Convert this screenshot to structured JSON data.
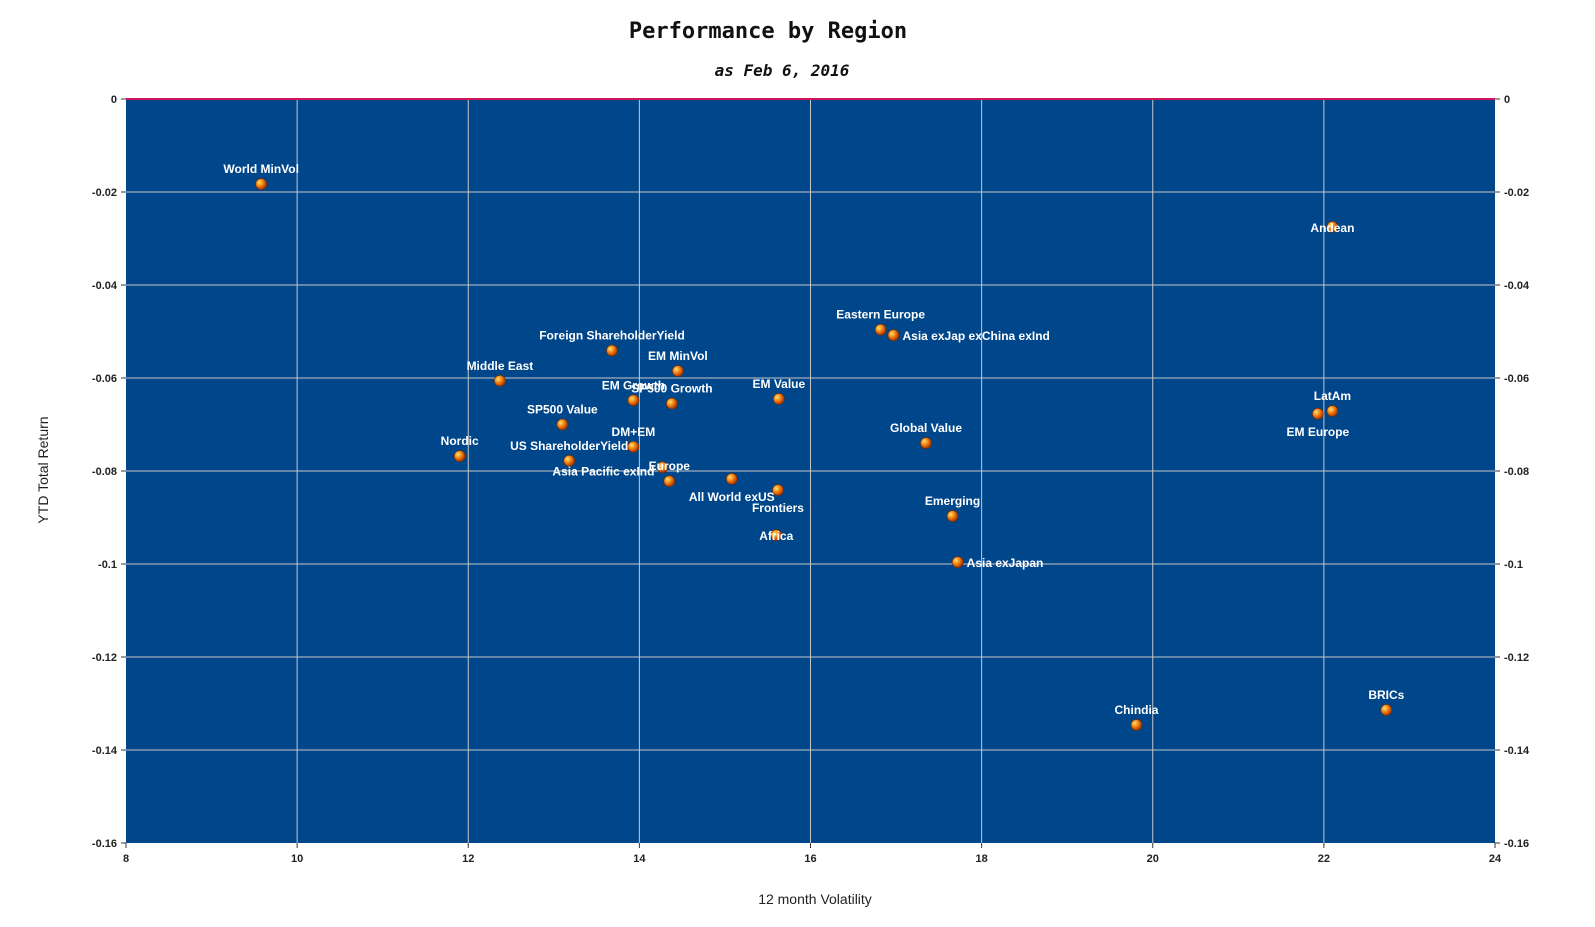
{
  "chart_data": {
    "type": "scatter",
    "title": "Performance by Region",
    "subtitle": "as Feb 6, 2016",
    "xlabel": "12 month Volatility",
    "ylabel": "YTD Total Return",
    "xlim": [
      8,
      24
    ],
    "ylim": [
      -0.16,
      0
    ],
    "xticks": [
      "8",
      "10",
      "12",
      "14",
      "16",
      "18",
      "20",
      "22",
      "24"
    ],
    "yticks": [
      "0",
      "-0.02",
      "-0.04",
      "-0.06",
      "-0.08",
      "-0.1",
      "-0.12",
      "-0.14",
      "-0.16"
    ],
    "grid": true,
    "points": [
      {
        "label": "World MinVol",
        "x": 9.58,
        "y": -0.0183,
        "pos": "above"
      },
      {
        "label": "Andean",
        "x": 22.1,
        "y": -0.0275,
        "pos": "on"
      },
      {
        "label": "Eastern Europe",
        "x": 16.82,
        "y": -0.0496,
        "pos": "above"
      },
      {
        "label": "Asia exJap exChina exInd",
        "x": 16.97,
        "y": -0.0508,
        "pos": "right"
      },
      {
        "label": "Foreign ShareholderYield",
        "x": 13.68,
        "y": -0.0541,
        "pos": "above"
      },
      {
        "label": "EM MinVol",
        "x": 14.45,
        "y": -0.0585,
        "pos": "above"
      },
      {
        "label": "Middle East",
        "x": 12.37,
        "y": -0.0606,
        "pos": "above"
      },
      {
        "label": "EM Growth",
        "x": 13.93,
        "y": -0.0648,
        "pos": "above"
      },
      {
        "label": "EM Value",
        "x": 15.63,
        "y": -0.0645,
        "pos": "above"
      },
      {
        "label": "SP500 Growth",
        "x": 14.38,
        "y": -0.0655,
        "pos": "above"
      },
      {
        "label": "LatAm",
        "x": 22.1,
        "y": -0.0671,
        "pos": "above"
      },
      {
        "label": "EM Europe",
        "x": 21.93,
        "y": -0.0677,
        "pos": "below"
      },
      {
        "label": "SP500 Value",
        "x": 13.1,
        "y": -0.07,
        "pos": "above"
      },
      {
        "label": "Global Value",
        "x": 17.35,
        "y": -0.074,
        "pos": "above"
      },
      {
        "label": "DM+EM",
        "x": 13.93,
        "y": -0.0748,
        "pos": "above"
      },
      {
        "label": "Nordic",
        "x": 11.9,
        "y": -0.0768,
        "pos": "above"
      },
      {
        "label": "US ShareholderYield",
        "x": 13.18,
        "y": -0.0778,
        "pos": "above"
      },
      {
        "label": "Asia Pacific exInd",
        "x": 14.27,
        "y": -0.0792,
        "pos": "left"
      },
      {
        "label": "Europe",
        "x": 14.35,
        "y": -0.0822,
        "pos": "above"
      },
      {
        "label": "All World exUS",
        "x": 15.08,
        "y": -0.0817,
        "pos": "below"
      },
      {
        "label": "Frontiers",
        "x": 15.62,
        "y": -0.0841,
        "pos": "below"
      },
      {
        "label": "Emerging",
        "x": 17.66,
        "y": -0.0897,
        "pos": "above"
      },
      {
        "label": "Africa",
        "x": 15.6,
        "y": -0.0938,
        "pos": "on"
      },
      {
        "label": "Asia exJapan",
        "x": 17.72,
        "y": -0.0996,
        "pos": "right"
      },
      {
        "label": "BRICs",
        "x": 22.73,
        "y": -0.1314,
        "pos": "above"
      },
      {
        "label": "Chindia",
        "x": 19.81,
        "y": -0.1346,
        "pos": "above"
      }
    ],
    "colors": {
      "plot_background": "#00468a",
      "grid": "#c8c8c8",
      "zero_line": "#d4145a",
      "marker": "#f07a10",
      "marker_highlight": "#ffe36a",
      "label": "#ffffff"
    }
  }
}
